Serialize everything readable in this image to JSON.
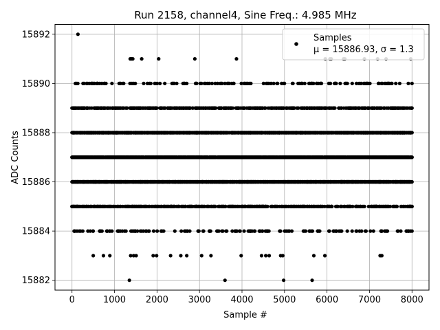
{
  "chart_data": {
    "type": "scatter",
    "title": "Run 2158, channel4, Sine Freq.: 4.985 MHz",
    "xlabel": "Sample #",
    "ylabel": "ADC Counts",
    "xlim": [
      -400,
      8400
    ],
    "ylim": [
      15881.6,
      15892.4
    ],
    "xticks": [
      0,
      1000,
      2000,
      3000,
      4000,
      5000,
      6000,
      7000,
      8000
    ],
    "xtick_labels": [
      "0",
      "1000",
      "2000",
      "3000",
      "4000",
      "5000",
      "6000",
      "7000",
      "8000"
    ],
    "yticks": [
      15882,
      15884,
      15886,
      15888,
      15890,
      15892
    ],
    "ytick_labels": [
      "15882",
      "15884",
      "15886",
      "15888",
      "15890",
      "15892"
    ],
    "grid": true,
    "legend_position": "top-right",
    "marker_color": "#000000",
    "series": [
      {
        "name": "Samples",
        "stats_label": "μ = 15886.93, σ = 1.3",
        "marker": "circle",
        "points": [
          [
            140,
            15892
          ],
          [
            1370,
            15891
          ],
          [
            1400,
            15891
          ],
          [
            1430,
            15891
          ],
          [
            1640,
            15891
          ],
          [
            2040,
            15891
          ],
          [
            2890,
            15891
          ],
          [
            3870,
            15891
          ],
          [
            5960,
            15891
          ],
          [
            6070,
            15891
          ],
          [
            6100,
            15891
          ],
          [
            6390,
            15891
          ],
          [
            6420,
            15891
          ],
          [
            6880,
            15891
          ],
          [
            7190,
            15891
          ],
          [
            7390,
            15891
          ],
          [
            7970,
            15891
          ],
          [
            1350,
            15882
          ],
          [
            3600,
            15882
          ],
          [
            4980,
            15882
          ],
          [
            5650,
            15882
          ],
          [
            500,
            15883
          ],
          [
            740,
            15883
          ],
          [
            890,
            15883
          ],
          [
            1380,
            15883
          ],
          [
            1450,
            15883
          ],
          [
            1510,
            15883
          ],
          [
            1910,
            15883
          ],
          [
            1990,
            15883
          ],
          [
            2320,
            15883
          ],
          [
            2560,
            15883
          ],
          [
            2700,
            15883
          ],
          [
            3050,
            15883
          ],
          [
            3270,
            15883
          ],
          [
            3980,
            15883
          ],
          [
            4460,
            15883
          ],
          [
            4560,
            15883
          ],
          [
            4640,
            15883
          ],
          [
            4910,
            15883
          ],
          [
            4960,
            15883
          ],
          [
            5690,
            15883
          ],
          [
            5950,
            15883
          ],
          [
            7250,
            15883
          ],
          [
            7290,
            15883
          ]
        ],
        "dense_rows": [
          {
            "y": 15884,
            "count": 150,
            "x_min": 50,
            "x_max": 8000
          },
          {
            "y": 15885,
            "count": 520,
            "x_min": 0,
            "x_max": 8000
          },
          {
            "y": 15886,
            "count": 1700,
            "x_min": 0,
            "x_max": 8000
          },
          {
            "y": 15887,
            "count": 1900,
            "x_min": 0,
            "x_max": 8000
          },
          {
            "y": 15888,
            "count": 1750,
            "x_min": 0,
            "x_max": 8000
          },
          {
            "y": 15889,
            "count": 560,
            "x_min": 0,
            "x_max": 8000
          },
          {
            "y": 15890,
            "count": 160,
            "x_min": 80,
            "x_max": 8000
          }
        ]
      }
    ]
  }
}
